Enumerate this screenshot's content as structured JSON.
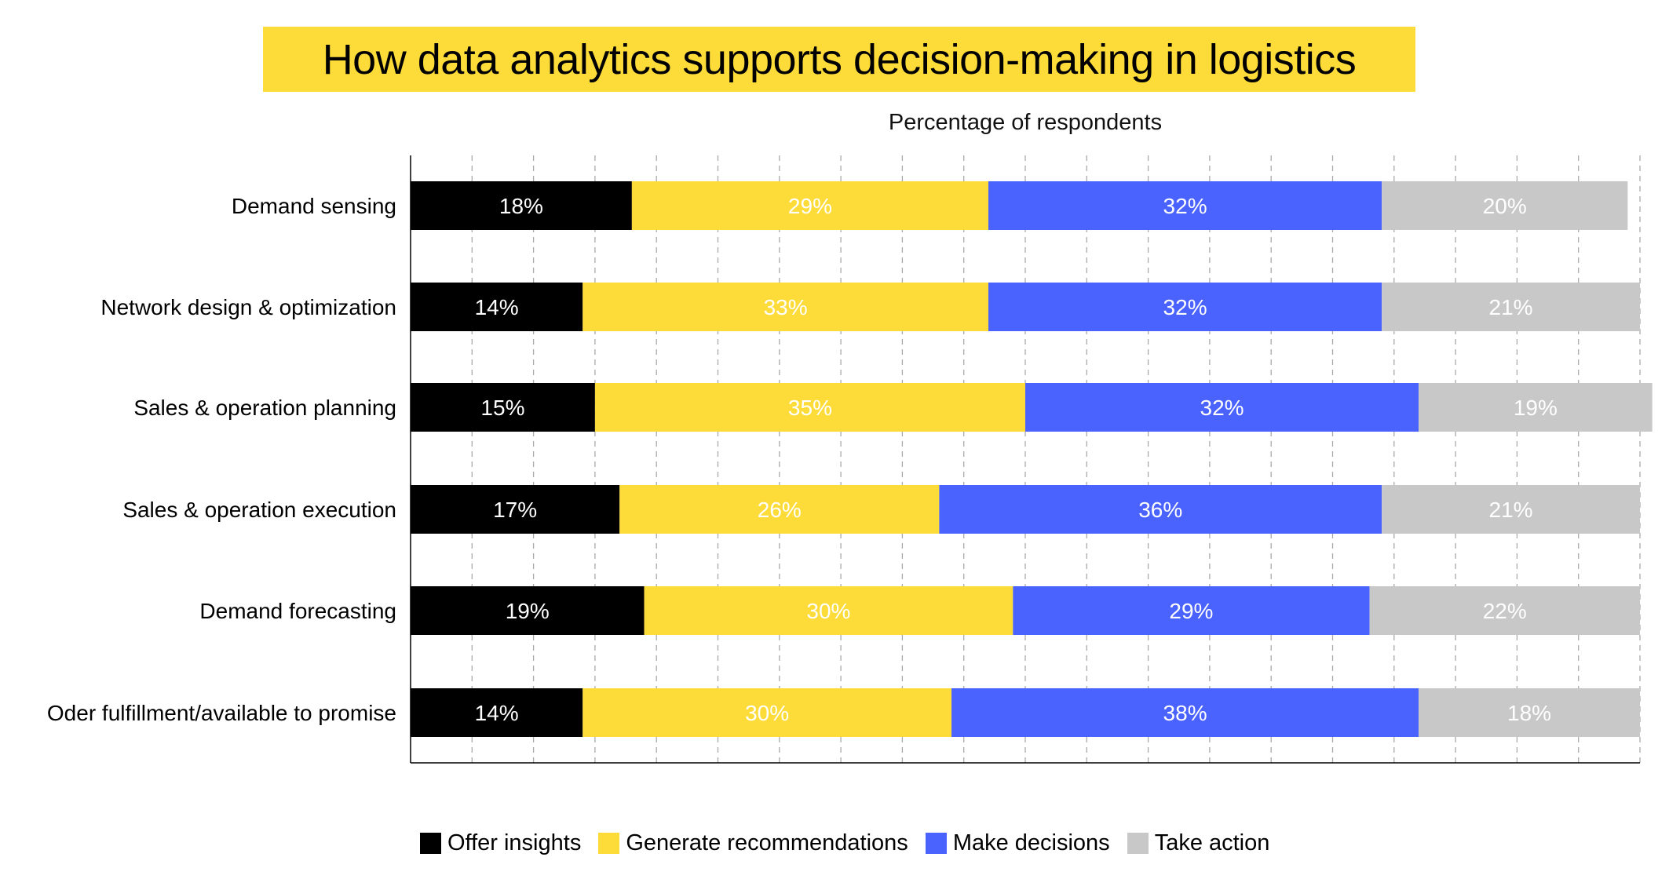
{
  "chart_data": {
    "type": "bar",
    "orientation": "horizontal",
    "stacked": true,
    "title": "How data analytics supports decision-making in logistics",
    "subtitle": "Percentage of respondents",
    "categories": [
      "Demand sensing",
      "Network design & optimization",
      "Sales & operation planning",
      "Sales & operation execution",
      "Demand forecasting",
      "Oder fulfillment/available to promise"
    ],
    "series": [
      {
        "name": "Offer insights",
        "color": "#000000",
        "label_color": "#FFFFFF",
        "values": [
          18,
          14,
          15,
          17,
          19,
          14
        ]
      },
      {
        "name": "Generate recommendations",
        "color": "#FDDC3A",
        "label_color": "#FFFFFF",
        "values": [
          29,
          33,
          35,
          26,
          30,
          30
        ]
      },
      {
        "name": "Make decisions",
        "color": "#4A63FF",
        "label_color": "#FFFFFF",
        "values": [
          32,
          32,
          32,
          36,
          29,
          38
        ]
      },
      {
        "name": "Take action",
        "color": "#C8C8C8",
        "label_color": "#FFFFFF",
        "values": [
          20,
          21,
          19,
          21,
          22,
          18
        ]
      }
    ],
    "xlim": [
      0,
      100
    ],
    "grid": {
      "x": true,
      "style": "dashed",
      "step": 5
    },
    "x_tick_labels_shown": false,
    "legend": "bottom",
    "title_background": "#FDDC3A"
  }
}
